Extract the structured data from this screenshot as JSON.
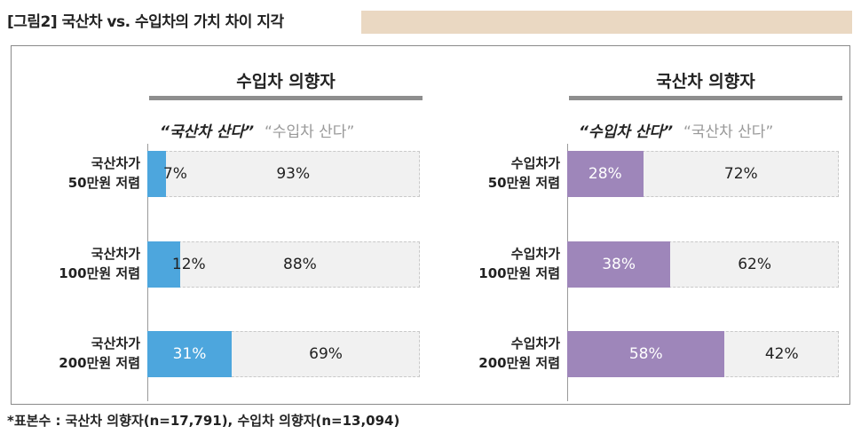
{
  "figure_title": "[그림2] 국산차 vs. 수입차의 가치 차이 지각",
  "footnote": "*표본수 : 국산차 의향자(n=17,791), 수입차 의향자(n=13,094)",
  "colors": {
    "domestic": "#4da6dd",
    "import": "#9e86ba",
    "remainder": "#f1f1f1",
    "title_band": "#ead8c2",
    "rule": "#8e8e8e"
  },
  "chart_data": [
    {
      "type": "bar",
      "stacked": true,
      "orientation": "horizontal",
      "title": "수입차 의향자",
      "legend": [
        "“국산차 산다”",
        "“수입차 산다”"
      ],
      "categories": [
        "국산차가 50만원 저렴",
        "국산차가 100만원 저렴",
        "국산차가 200만원 저렴"
      ],
      "category_lines": [
        [
          "국산차가",
          "50만원 저렴"
        ],
        [
          "국산차가",
          "100만원 저렴"
        ],
        [
          "국산차가",
          "200만원 저렴"
        ]
      ],
      "series": [
        {
          "name": "“국산차 산다”",
          "values": [
            7,
            12,
            31
          ],
          "labels": [
            "7%",
            "12%",
            "31%"
          ],
          "color": "#4da6dd"
        },
        {
          "name": "“수입차 산다”",
          "values": [
            93,
            88,
            69
          ],
          "labels": [
            "93%",
            "88%",
            "69%"
          ],
          "color": "#f1f1f1"
        }
      ],
      "xlim": [
        0,
        100
      ]
    },
    {
      "type": "bar",
      "stacked": true,
      "orientation": "horizontal",
      "title": "국산차 의향자",
      "legend": [
        "“수입차 산다”",
        "“국산차 산다”"
      ],
      "categories": [
        "수입차가 50만원 저렴",
        "수입차가 100만원 저렴",
        "수입차가 200만원 저렴"
      ],
      "category_lines": [
        [
          "수입차가",
          "50만원 저렴"
        ],
        [
          "수입차가",
          "100만원 저렴"
        ],
        [
          "수입차가",
          "200만원 저렴"
        ]
      ],
      "series": [
        {
          "name": "“수입차 산다”",
          "values": [
            28,
            38,
            58
          ],
          "labels": [
            "28%",
            "38%",
            "58%"
          ],
          "color": "#9e86ba"
        },
        {
          "name": "“국산차 산다”",
          "values": [
            72,
            62,
            42
          ],
          "labels": [
            "72%",
            "62%",
            "42%"
          ],
          "color": "#f1f1f1"
        }
      ],
      "xlim": [
        0,
        100
      ]
    }
  ]
}
